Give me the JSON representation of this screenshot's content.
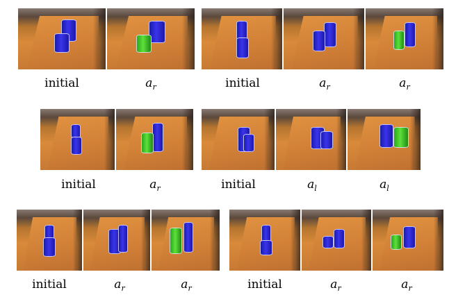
{
  "label_initial": "initial",
  "action_symbol": "a",
  "action_right_subscript": "r",
  "action_left_subscript": "l",
  "colors": {
    "blue_cup": "#2a25d6",
    "green_cup": "#45c82a",
    "table": "#d98a3a"
  },
  "groups": [
    {
      "panels": [
        "initial",
        "a_r"
      ]
    },
    {
      "panels": [
        "initial",
        "a_r",
        "a_r"
      ]
    },
    {
      "panels": [
        "initial",
        "a_r"
      ]
    },
    {
      "panels": [
        "initial",
        "a_l",
        "a_l"
      ]
    },
    {
      "panels": [
        "initial",
        "a_r",
        "a_r"
      ]
    },
    {
      "panels": [
        "initial",
        "a_r",
        "a_r"
      ]
    }
  ]
}
